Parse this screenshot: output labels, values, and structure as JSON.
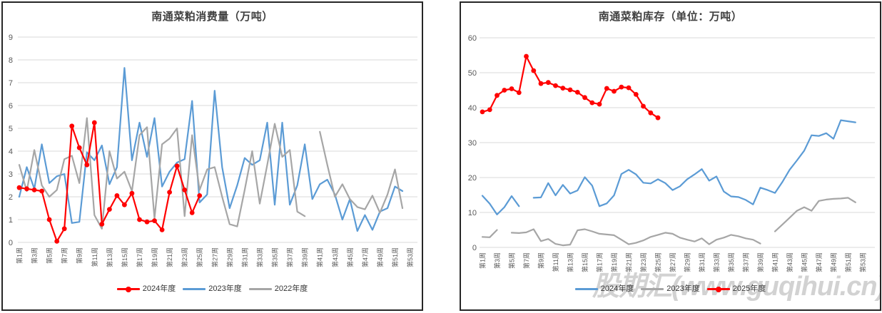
{
  "watermark": "股期汇(www.guqihui.cn)",
  "chart_data": [
    {
      "type": "line",
      "title": "南通菜粕消费量（万吨）",
      "xlabel": "",
      "ylabel": "",
      "ylim": [
        0,
        9
      ],
      "ytick_step": 1,
      "n_weeks": 53,
      "grid": true,
      "legend_position": "bottom",
      "x_tick_labels": [
        "第1周",
        "第3周",
        "第5周",
        "第7周",
        "第9周",
        "第11周",
        "第13周",
        "第15周",
        "第17周",
        "第19周",
        "第21周",
        "第23周",
        "第25周",
        "第27周",
        "第29周",
        "第31周",
        "第33周",
        "第35周",
        "第37周",
        "第39周",
        "第41周",
        "第43周",
        "第45周",
        "第47周",
        "第49周",
        "第51周",
        "第53周"
      ],
      "series": [
        {
          "name": "2024年度",
          "color": "#FF0000",
          "marker": true,
          "values": [
            2.4,
            2.35,
            2.3,
            2.25,
            1.0,
            0.05,
            0.6,
            5.1,
            4.15,
            3.4,
            5.25,
            0.8,
            1.45,
            2.05,
            1.65,
            2.15,
            1.0,
            0.9,
            0.95,
            0.55,
            2.2,
            3.35,
            2.3,
            1.3,
            2.05
          ]
        },
        {
          "name": "2023年度",
          "color": "#5B9BD5",
          "marker": false,
          "values": [
            2.0,
            3.3,
            2.35,
            4.3,
            2.6,
            2.9,
            3.0,
            0.85,
            0.9,
            3.95,
            3.6,
            4.25,
            2.55,
            3.3,
            7.65,
            3.6,
            5.25,
            3.75,
            5.45,
            2.45,
            3.1,
            3.5,
            3.65,
            6.2,
            1.75,
            2.1,
            6.65,
            3.3,
            1.5,
            2.5,
            3.7,
            3.4,
            3.6,
            5.25,
            1.65,
            5.25,
            1.65,
            2.5,
            4.3,
            1.9,
            2.55,
            2.75,
            2.1,
            1.0,
            1.9,
            0.5,
            1.2,
            0.55,
            1.35,
            1.5,
            2.45,
            2.25
          ]
        },
        {
          "name": "2022年度",
          "color": "#A6A6A6",
          "marker": false,
          "values": [
            3.4,
            2.25,
            4.05,
            2.5,
            2.0,
            2.3,
            3.65,
            3.8,
            2.6,
            5.45,
            1.2,
            0.6,
            4.0,
            2.8,
            3.1,
            2.25,
            4.7,
            5.05,
            1.05,
            4.3,
            4.55,
            5.0,
            1.15,
            4.7,
            2.3,
            3.2,
            3.3,
            2.0,
            0.8,
            0.7,
            2.3,
            4.0,
            1.7,
            3.4,
            5.2,
            3.75,
            4.05,
            1.35,
            1.15,
            null,
            4.85,
            3.4,
            2.0,
            2.55,
            1.9,
            1.55,
            1.45,
            2.05,
            1.3,
            2.1,
            3.2,
            1.5
          ]
        }
      ]
    },
    {
      "type": "line",
      "title": "南通菜粕库存（单位：万吨）",
      "xlabel": "",
      "ylabel": "",
      "ylim": [
        0,
        60
      ],
      "ytick_step": 10,
      "n_weeks": 53,
      "grid": true,
      "legend_position": "bottom",
      "watermark": "股期汇(www.guqihui.cn)",
      "x_tick_labels": [
        "第1周",
        "第3周",
        "第5周",
        "第7周",
        "第9周",
        "第11周",
        "第13周",
        "第15周",
        "第17周",
        "第19周",
        "第21周",
        "第23周",
        "第25周",
        "第27周",
        "第29周",
        "第31周",
        "第33周",
        "第35周",
        "第37周",
        "第39周",
        "第41周",
        "第43周",
        "第45周",
        "第47周",
        "第49周",
        "第51周",
        "第53周"
      ],
      "series": [
        {
          "name": "2024年度",
          "color": "#5B9BD5",
          "marker": false,
          "values": [
            14.8,
            12.5,
            9.4,
            11.5,
            14.7,
            11.8,
            null,
            14.2,
            14.3,
            18.4,
            14.9,
            17.9,
            15.4,
            16.3,
            20.1,
            17.7,
            11.8,
            12.6,
            14.9,
            21.0,
            22.2,
            20.9,
            18.5,
            18.3,
            19.5,
            18.4,
            16.4,
            17.5,
            19.5,
            20.9,
            22.4,
            19.1,
            20.3,
            16.0,
            14.6,
            14.4,
            13.6,
            12.3,
            17.1,
            16.4,
            15.6,
            18.7,
            22.2,
            24.9,
            27.7,
            32.1,
            31.9,
            32.7,
            31.1,
            36.4,
            36.1,
            35.8
          ]
        },
        {
          "name": "2023年度",
          "color": "#A6A6A6",
          "marker": false,
          "values": [
            3.0,
            2.9,
            5.0,
            null,
            4.2,
            4.1,
            4.3,
            5.2,
            1.8,
            2.4,
            1.0,
            0.6,
            0.8,
            4.9,
            5.2,
            4.6,
            3.9,
            3.7,
            3.5,
            2.2,
            0.9,
            1.3,
            2.0,
            3.0,
            3.6,
            4.2,
            3.9,
            2.8,
            2.2,
            1.7,
            2.6,
            0.9,
            2.2,
            2.8,
            3.6,
            3.2,
            2.6,
            2.2,
            1.1,
            null,
            4.6,
            6.5,
            8.5,
            10.5,
            11.5,
            10.5,
            13.3,
            13.7,
            13.9,
            14.0,
            14.2,
            12.9
          ]
        },
        {
          "name": "2025年度",
          "color": "#FF0000",
          "marker": true,
          "values": [
            38.8,
            39.4,
            43.5,
            45.0,
            45.4,
            44.3,
            54.7,
            50.6,
            46.9,
            47.2,
            46.3,
            45.6,
            45.1,
            44.4,
            42.9,
            41.4,
            41.0,
            45.5,
            44.7,
            45.9,
            45.7,
            43.8,
            40.4,
            38.5,
            37.1
          ]
        }
      ]
    }
  ]
}
